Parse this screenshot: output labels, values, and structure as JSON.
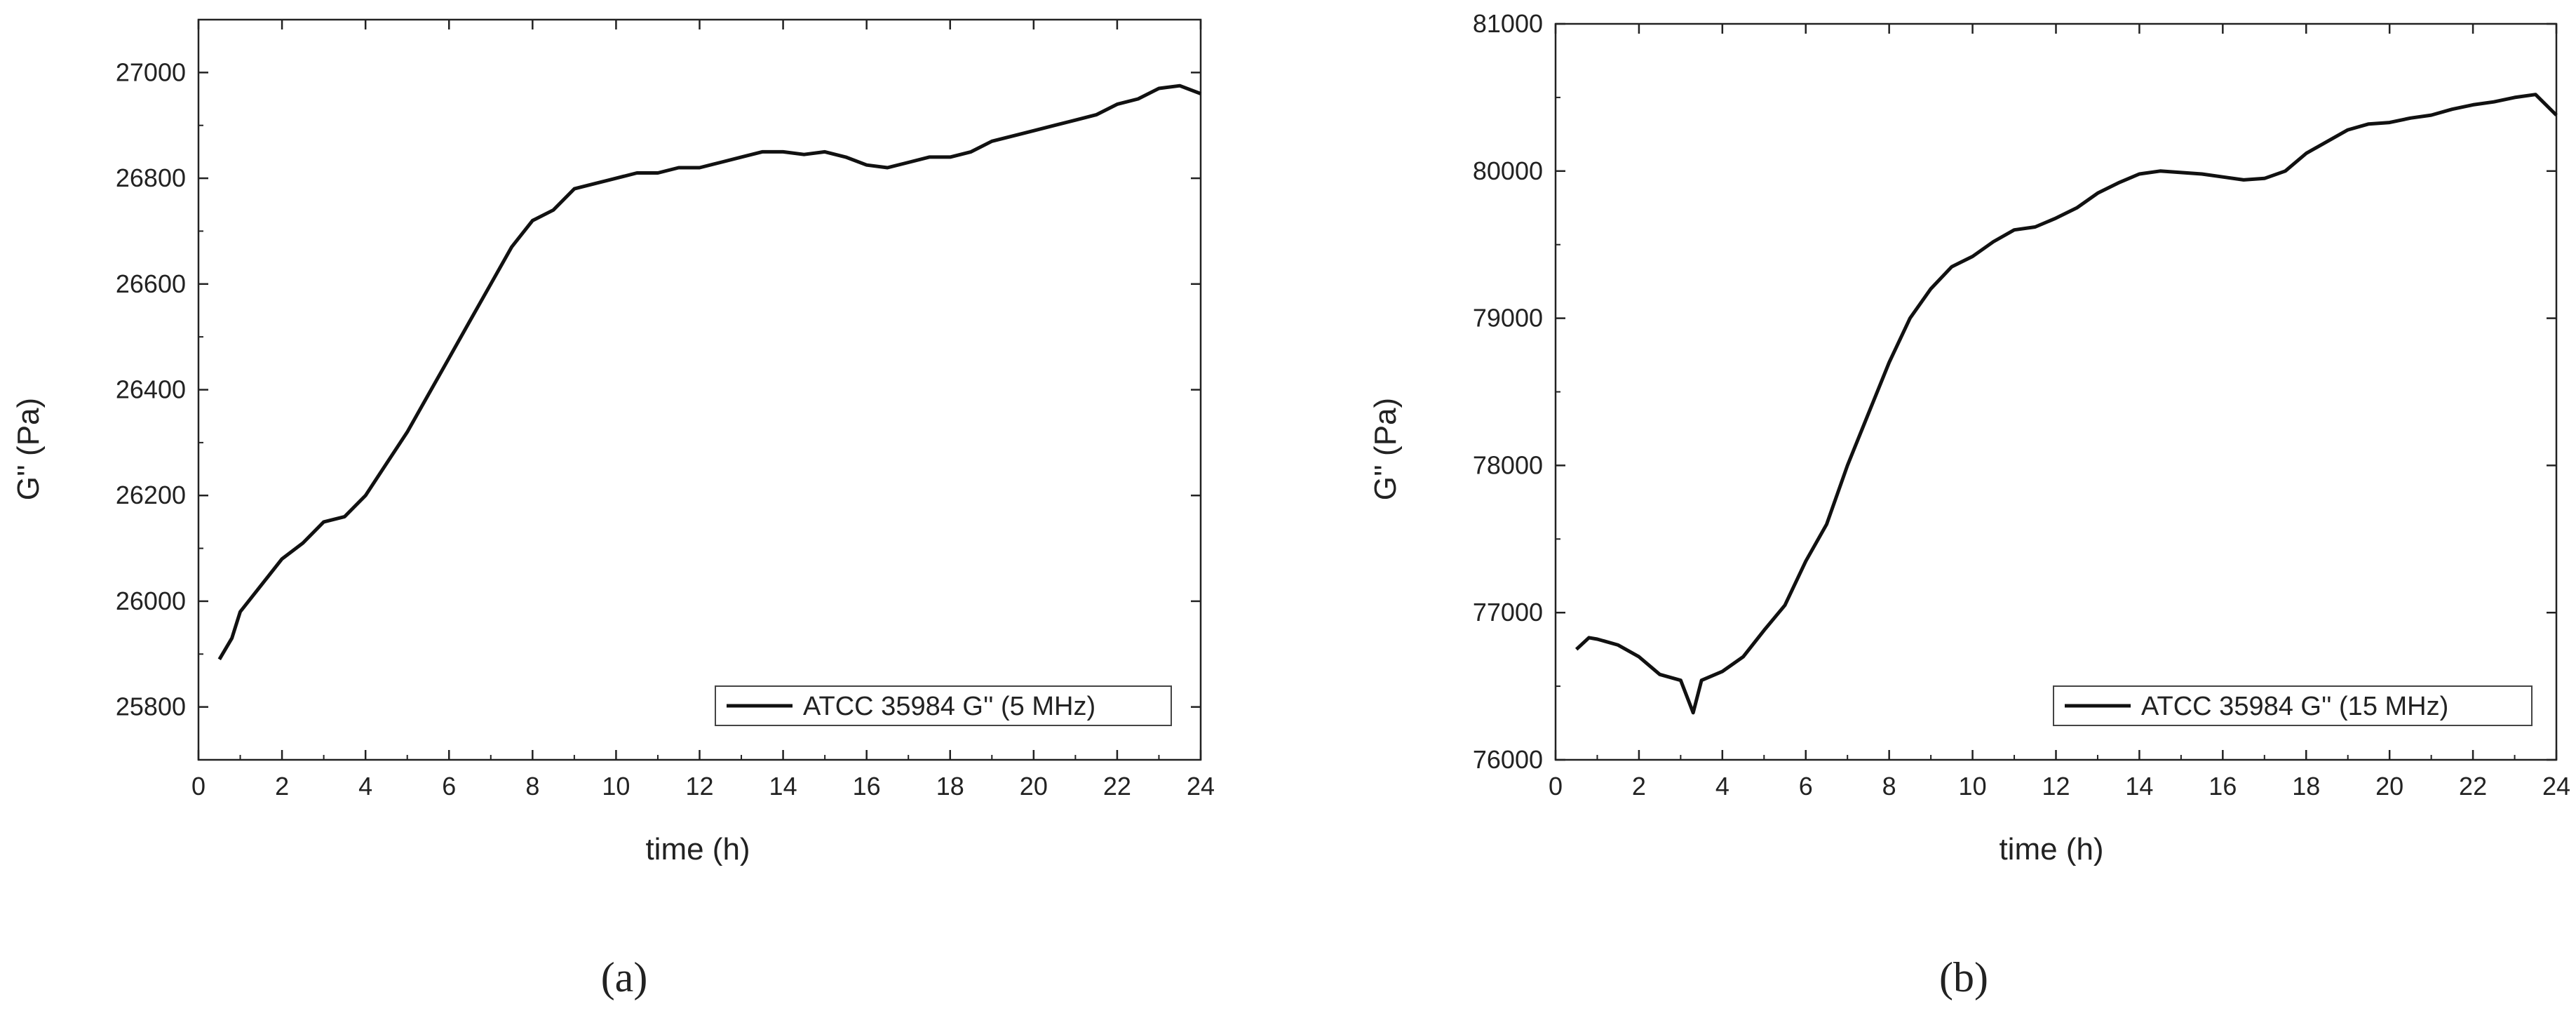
{
  "figure": {
    "panel_labels": [
      "(a)",
      "(b)"
    ]
  },
  "chart_data": [
    {
      "type": "line",
      "panel": "(a)",
      "title": "",
      "xlabel": "time (h)",
      "ylabel": "G'' (Pa)",
      "xlim": [
        0,
        24
      ],
      "ylim": [
        25700,
        27100
      ],
      "xticks": [
        0,
        2,
        4,
        6,
        8,
        10,
        12,
        14,
        16,
        18,
        20,
        22,
        24
      ],
      "yticks": [
        25800,
        26000,
        26200,
        26400,
        26600,
        26800,
        27000
      ],
      "grid": false,
      "legend_position": "bottom-right",
      "line_color": "#111111",
      "series": [
        {
          "name": "ATCC 35984 G'' (5 MHz)",
          "x": [
            0.5,
            0.8,
            1.0,
            1.5,
            2.0,
            2.5,
            3.0,
            3.5,
            4.0,
            4.5,
            5.0,
            5.5,
            6.0,
            6.5,
            7.0,
            7.5,
            8.0,
            8.5,
            9.0,
            9.5,
            10.0,
            10.5,
            11.0,
            11.5,
            12.0,
            12.5,
            13.0,
            13.5,
            14.0,
            14.5,
            15.0,
            15.5,
            16.0,
            16.5,
            17.0,
            17.5,
            18.0,
            18.5,
            19.0,
            19.5,
            20.0,
            20.5,
            21.0,
            21.5,
            22.0,
            22.5,
            23.0,
            23.5,
            24.0
          ],
          "values": [
            25890,
            25930,
            25980,
            26030,
            26080,
            26110,
            26150,
            26160,
            26200,
            26260,
            26320,
            26390,
            26460,
            26530,
            26600,
            26670,
            26720,
            26740,
            26780,
            26790,
            26800,
            26810,
            26810,
            26820,
            26820,
            26830,
            26840,
            26850,
            26850,
            26845,
            26850,
            26840,
            26825,
            26820,
            26830,
            26840,
            26840,
            26850,
            26870,
            26880,
            26890,
            26900,
            26910,
            26920,
            26940,
            26950,
            26970,
            26975,
            26960
          ]
        }
      ]
    },
    {
      "type": "line",
      "panel": "(b)",
      "title": "",
      "xlabel": "time (h)",
      "ylabel": "G'' (Pa)",
      "xlim": [
        0,
        24
      ],
      "ylim": [
        76000,
        81000
      ],
      "xticks": [
        0,
        2,
        4,
        6,
        8,
        10,
        12,
        14,
        16,
        18,
        20,
        22,
        24
      ],
      "yticks": [
        76000,
        77000,
        78000,
        79000,
        80000,
        81000
      ],
      "grid": false,
      "legend_position": "bottom-right",
      "line_color": "#111111",
      "series": [
        {
          "name": "ATCC 35984 G'' (15 MHz)",
          "x": [
            0.5,
            0.8,
            1.0,
            1.5,
            2.0,
            2.5,
            3.0,
            3.3,
            3.5,
            4.0,
            4.5,
            5.0,
            5.5,
            6.0,
            6.5,
            7.0,
            7.5,
            8.0,
            8.5,
            9.0,
            9.5,
            10.0,
            10.5,
            11.0,
            11.5,
            12.0,
            12.5,
            13.0,
            13.5,
            14.0,
            14.5,
            15.0,
            15.5,
            16.0,
            16.5,
            17.0,
            17.5,
            18.0,
            18.5,
            19.0,
            19.5,
            20.0,
            20.5,
            21.0,
            21.5,
            22.0,
            22.5,
            23.0,
            23.5,
            24.0
          ],
          "values": [
            76750,
            76830,
            76820,
            76780,
            76700,
            76580,
            76540,
            76320,
            76540,
            76600,
            76700,
            76880,
            77050,
            77350,
            77600,
            78000,
            78350,
            78700,
            79000,
            79200,
            79350,
            79420,
            79520,
            79600,
            79620,
            79680,
            79750,
            79850,
            79920,
            79980,
            80000,
            79990,
            79980,
            79960,
            79940,
            79950,
            80000,
            80120,
            80200,
            80280,
            80320,
            80330,
            80360,
            80380,
            80420,
            80450,
            80470,
            80500,
            80520,
            80380
          ]
        }
      ]
    }
  ]
}
